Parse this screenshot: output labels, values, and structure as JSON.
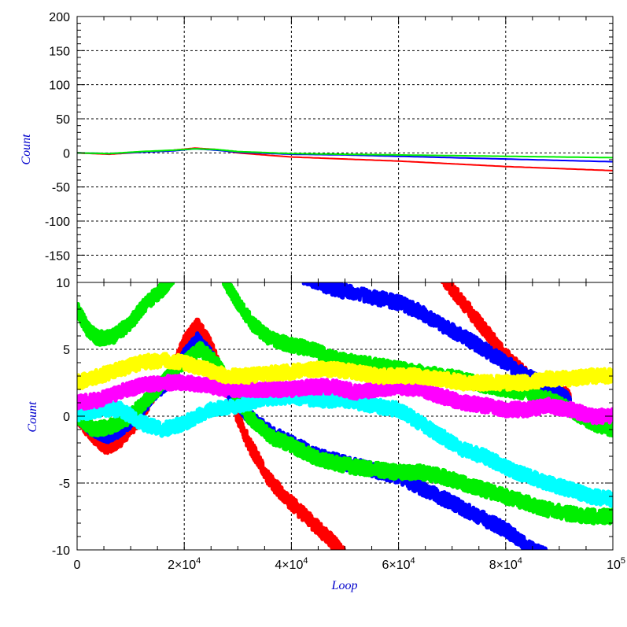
{
  "chart_data": [
    {
      "type": "line",
      "panel": "top",
      "xlim": [
        0,
        100000
      ],
      "ylim": [
        -190,
        200
      ],
      "ylabel": "Count",
      "yticks": [
        200,
        150,
        100,
        50,
        0,
        -50,
        -100,
        -150
      ],
      "ytick_labels": [
        "200",
        "150",
        "100",
        "50",
        "0",
        "-50",
        "-100",
        "-150"
      ],
      "xticks": [
        0,
        20000,
        40000,
        60000,
        80000,
        100000
      ],
      "grid": true,
      "series": [
        {
          "color": "#ff0000",
          "x": [
            0,
            6000,
            12000,
            18000,
            22000,
            26000,
            30000,
            40000,
            50000,
            60000,
            70000,
            80000,
            90000,
            100000
          ],
          "y": [
            0,
            -2,
            1,
            4,
            7,
            5,
            0,
            -6,
            -9,
            -12,
            -16,
            -20,
            -23,
            -26
          ]
        },
        {
          "color": "#0000ff",
          "x": [
            0,
            6000,
            12000,
            18000,
            22000,
            26000,
            30000,
            40000,
            50000,
            60000,
            70000,
            80000,
            90000,
            100000
          ],
          "y": [
            0,
            -1,
            1,
            3,
            6,
            4,
            1,
            -2,
            -3,
            -5,
            -7,
            -9,
            -11,
            -13
          ]
        },
        {
          "color": "#00ee00",
          "x": [
            0,
            6000,
            12000,
            18000,
            22000,
            26000,
            30000,
            40000,
            50000,
            60000,
            70000,
            80000,
            90000,
            100000
          ],
          "y": [
            0,
            -1,
            2,
            4,
            6,
            5,
            2,
            -1,
            -2,
            -3,
            -4,
            -5,
            -6,
            -7
          ]
        }
      ]
    },
    {
      "type": "line",
      "panel": "bottom",
      "xlim": [
        0,
        100000
      ],
      "ylim": [
        -10,
        10
      ],
      "xlabel": "Loop",
      "ylabel": "Count",
      "yticks": [
        10,
        5,
        0,
        -5,
        -10
      ],
      "ytick_labels": [
        "10",
        "5",
        "0",
        "-5",
        "-10"
      ],
      "xticks": [
        0,
        20000,
        40000,
        60000,
        80000,
        100000
      ],
      "xtick_labels": [
        {
          "mant": "0",
          "exp": ""
        },
        {
          "mant": "2×10",
          "exp": "4"
        },
        {
          "mant": "4×10",
          "exp": "4"
        },
        {
          "mant": "6×10",
          "exp": "4"
        },
        {
          "mant": "8×10",
          "exp": "4"
        },
        {
          "mant": "10",
          "exp": "5"
        }
      ],
      "grid": true,
      "series": [
        {
          "color": "#ff0000",
          "x": [
            0,
            3000,
            5500,
            8000,
            11000,
            14000,
            18000,
            20000,
            22500,
            25000,
            28000,
            32000,
            36000,
            40000,
            44000,
            48000,
            50000
          ],
          "y": [
            0,
            -1.5,
            -2.3,
            -1.8,
            -0.5,
            1.5,
            3.5,
            5.5,
            6.8,
            5.2,
            2.0,
            -2.0,
            -4.8,
            -6.5,
            -8.0,
            -9.5,
            -10.5
          ]
        },
        {
          "color": "#ff0000",
          "x": [
            68000,
            72000,
            76000,
            80000,
            84000,
            88000,
            92000
          ],
          "y": [
            10.5,
            8.5,
            6.5,
            4.5,
            3.0,
            2.0,
            1.5
          ]
        },
        {
          "color": "#0000ff",
          "x": [
            0,
            3000,
            5500,
            8000,
            11000,
            14000,
            18000,
            20000,
            22500,
            25000,
            28000,
            32000,
            36000,
            40000,
            45000,
            50000,
            55000,
            60000,
            65000,
            70000,
            75000,
            80000,
            85000,
            88000
          ],
          "y": [
            0,
            -1.0,
            -1.5,
            -1.0,
            0,
            1.5,
            3.0,
            4.5,
            5.7,
            4.5,
            2.0,
            0,
            -1.2,
            -2.0,
            -3.0,
            -3.5,
            -4.0,
            -4.5,
            -5.5,
            -6.5,
            -7.5,
            -8.5,
            -10.0,
            -10.5
          ]
        },
        {
          "color": "#0000ff",
          "x": [
            42000,
            48000,
            54000,
            60000,
            64000,
            68000,
            72000,
            76000,
            80000,
            84000,
            88000,
            92000
          ],
          "y": [
            10.5,
            9.5,
            9.0,
            8.5,
            7.8,
            6.8,
            6.0,
            5.0,
            4.0,
            3.0,
            2.2,
            1.2
          ]
        },
        {
          "color": "#00ee00",
          "x": [
            0,
            2000,
            4000,
            7000,
            10000,
            13000,
            16000,
            18000
          ],
          "y": [
            8.0,
            6.5,
            5.8,
            6.0,
            7.0,
            8.5,
            9.5,
            10.5
          ]
        },
        {
          "color": "#00ee00",
          "x": [
            27000,
            30000,
            33000,
            36000,
            40000,
            44000,
            48000,
            52000,
            56000,
            60000,
            64000,
            68000,
            72000,
            76000,
            80000,
            84000,
            88000,
            92000,
            96000,
            100000
          ],
          "y": [
            10.5,
            8.5,
            6.8,
            5.8,
            5.3,
            5.0,
            4.3,
            4.0,
            3.8,
            3.5,
            3.3,
            3.0,
            2.8,
            2.3,
            2.0,
            1.8,
            1.3,
            0.5,
            -0.5,
            -1.0
          ]
        },
        {
          "color": "#00ee00",
          "x": [
            0,
            3000,
            6000,
            9000,
            12000,
            15000,
            18000,
            20000,
            23000,
            26000,
            29000,
            32000,
            36000,
            40000,
            44000,
            48000,
            52000,
            56000,
            60000,
            64000,
            68000,
            72000,
            76000,
            80000,
            84000,
            88000,
            92000,
            96000,
            100000
          ],
          "y": [
            0,
            -1.0,
            -0.8,
            -0.3,
            0.8,
            2.0,
            3.5,
            4.0,
            5.0,
            4.0,
            2.0,
            0,
            -1.5,
            -2.2,
            -3.0,
            -3.5,
            -3.8,
            -4.0,
            -4.2,
            -4.2,
            -4.5,
            -5.0,
            -5.5,
            -6.0,
            -6.5,
            -7.0,
            -7.3,
            -7.5,
            -7.5
          ]
        },
        {
          "color": "#00ffff",
          "x": [
            0,
            4000,
            8000,
            12000,
            16000,
            20000,
            25000,
            30000,
            35000,
            40000,
            45000,
            50000,
            55000,
            60000,
            64000,
            68000,
            72000,
            76000,
            80000,
            84000,
            88000,
            92000,
            96000,
            100000
          ],
          "y": [
            0,
            0.5,
            0.5,
            -0.5,
            -1.0,
            -0.5,
            0.5,
            0.8,
            1.3,
            1.5,
            1.2,
            1.2,
            0.8,
            0.5,
            -0.5,
            -1.5,
            -2.5,
            -3.0,
            -3.8,
            -4.5,
            -5.0,
            -5.5,
            -6.0,
            -6.2
          ]
        },
        {
          "color": "#ff00ff",
          "x": [
            0,
            4000,
            8000,
            12000,
            16000,
            20000,
            24000,
            28000,
            32000,
            36000,
            40000,
            44000,
            48000,
            52000,
            56000,
            60000,
            64000,
            68000,
            72000,
            76000,
            80000,
            84000,
            88000,
            92000,
            96000,
            100000
          ],
          "y": [
            1.0,
            1.2,
            1.8,
            2.3,
            2.5,
            2.5,
            2.3,
            2.0,
            2.0,
            2.0,
            2.0,
            2.2,
            2.2,
            1.8,
            2.0,
            2.2,
            2.0,
            1.5,
            1.0,
            0.8,
            0.5,
            0.5,
            0.8,
            0.5,
            0.0,
            0.0
          ]
        },
        {
          "color": "#ffff00",
          "x": [
            0,
            4000,
            8000,
            12000,
            16000,
            20000,
            24000,
            28000,
            32000,
            36000,
            40000,
            44000,
            48000,
            52000,
            56000,
            60000,
            64000,
            68000,
            72000,
            76000,
            80000,
            84000,
            88000,
            92000,
            96000,
            100000
          ],
          "y": [
            2.5,
            3.0,
            3.5,
            4.0,
            4.2,
            4.0,
            3.5,
            3.0,
            3.0,
            3.2,
            3.3,
            3.5,
            3.5,
            3.3,
            3.0,
            3.0,
            3.0,
            2.8,
            2.5,
            2.5,
            2.5,
            2.5,
            2.8,
            2.8,
            3.0,
            3.0
          ]
        }
      ]
    }
  ]
}
